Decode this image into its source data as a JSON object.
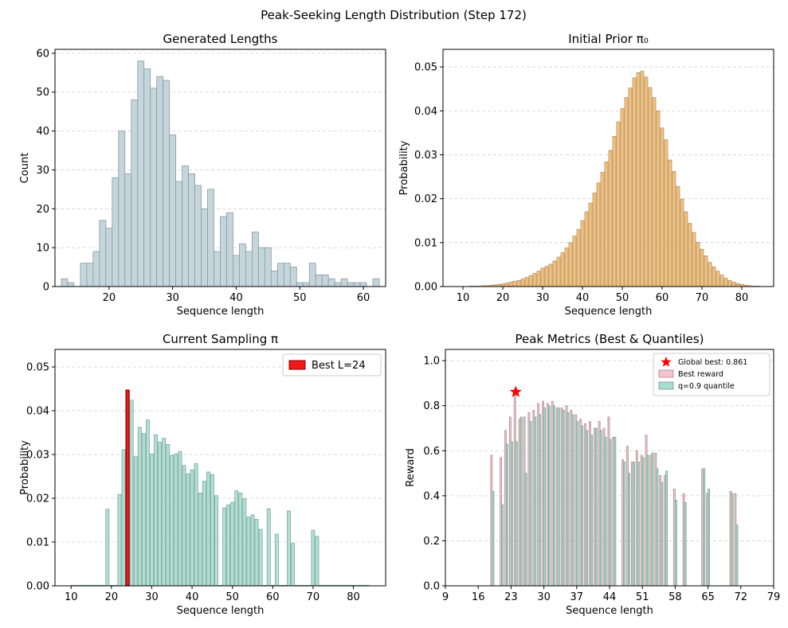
{
  "figure_title": "Peak-Seeking Length Distribution (Step 172)",
  "colors": {
    "hist": "#c5d5dc",
    "hist_edge": "#8a9aa2",
    "prior": "#f5c37f",
    "prior_edge": "#a8865a",
    "sampling": "#b3e0d5",
    "sampling_edge": "#7aa59a",
    "best": "#f01818",
    "best_edge": "#8a0000",
    "best_reward": "#f2c4cc",
    "best_reward_edge": "#a88890",
    "quantile": "#a9dccf",
    "quantile_edge": "#6f9a8f",
    "star": "#ff0000",
    "grid": "#d0d0d0"
  },
  "chart_data": [
    {
      "type": "bar",
      "title": "Generated Lengths",
      "xlabel": "Sequence length",
      "ylabel": "Count",
      "grid": true,
      "xlim": [
        11.5,
        63.5
      ],
      "ylim": [
        0,
        61
      ],
      "xticks": [
        20,
        30,
        40,
        50,
        60
      ],
      "yticks": [
        0,
        10,
        20,
        30,
        40,
        50,
        60
      ],
      "x": [
        13,
        14,
        16,
        17,
        18,
        19,
        20,
        21,
        22,
        23,
        24,
        25,
        26,
        27,
        28,
        29,
        30,
        31,
        32,
        33,
        34,
        35,
        36,
        37,
        38,
        39,
        40,
        41,
        42,
        43,
        44,
        45,
        46,
        47,
        48,
        49,
        50,
        51,
        52,
        53,
        54,
        55,
        56,
        57,
        58,
        59,
        60,
        62
      ],
      "values": [
        2,
        1,
        6,
        6,
        9,
        17,
        15,
        28,
        40,
        29,
        48,
        58,
        56,
        51,
        54,
        53,
        39,
        27,
        31,
        29,
        26,
        20,
        25,
        9,
        18,
        19,
        8,
        11,
        9,
        14,
        10,
        10,
        4,
        6,
        6,
        5,
        1,
        1,
        6,
        3,
        3,
        2,
        1,
        2,
        1,
        1,
        1,
        2
      ]
    },
    {
      "type": "bar",
      "title": "Initial Prior π₀",
      "xlabel": "Sequence length",
      "ylabel": "Probability",
      "grid": true,
      "xlim": [
        5,
        88
      ],
      "ylim": [
        0,
        0.054
      ],
      "xticks": [
        10,
        20,
        30,
        40,
        50,
        60,
        70,
        80
      ],
      "yticks": [
        0,
        0.01,
        0.02,
        0.03,
        0.04,
        0.05
      ],
      "x": [
        12,
        13,
        14,
        15,
        16,
        17,
        18,
        19,
        20,
        21,
        22,
        23,
        24,
        25,
        26,
        27,
        28,
        29,
        30,
        31,
        32,
        33,
        34,
        35,
        36,
        37,
        38,
        39,
        40,
        41,
        42,
        43,
        44,
        45,
        46,
        47,
        48,
        49,
        50,
        51,
        52,
        53,
        54,
        55,
        56,
        57,
        58,
        59,
        60,
        61,
        62,
        63,
        64,
        65,
        66,
        67,
        68,
        69,
        70,
        71,
        72,
        73,
        74,
        75,
        76,
        77,
        78,
        79,
        80,
        81,
        82,
        83,
        84
      ],
      "values": [
        0.0001,
        0.0001,
        0.0001,
        0.0002,
        0.0002,
        0.0003,
        0.0004,
        0.0005,
        0.0006,
        0.0008,
        0.001,
        0.0012,
        0.0014,
        0.0017,
        0.0021,
        0.0025,
        0.003,
        0.0035,
        0.0042,
        0.0046,
        0.0051,
        0.0058,
        0.0067,
        0.0077,
        0.0088,
        0.01,
        0.0115,
        0.013,
        0.015,
        0.017,
        0.019,
        0.0213,
        0.0236,
        0.026,
        0.0284,
        0.031,
        0.0342,
        0.0375,
        0.0405,
        0.043,
        0.0452,
        0.0475,
        0.0487,
        0.049,
        0.0477,
        0.0453,
        0.043,
        0.04,
        0.0361,
        0.0334,
        0.0288,
        0.0262,
        0.0228,
        0.0199,
        0.017,
        0.0144,
        0.0123,
        0.0101,
        0.0085,
        0.007,
        0.0055,
        0.0045,
        0.0035,
        0.0026,
        0.0019,
        0.0014,
        0.001,
        0.0007,
        0.0005,
        0.0003,
        0.0002,
        0.0001,
        0.0001
      ]
    },
    {
      "type": "bar",
      "title": "Current Sampling π",
      "xlabel": "Sequence length",
      "ylabel": "Probability",
      "grid": true,
      "xlim": [
        6,
        88
      ],
      "ylim": [
        0,
        0.054
      ],
      "xticks": [
        10,
        20,
        30,
        40,
        50,
        60,
        70,
        80
      ],
      "yticks": [
        0,
        0.01,
        0.02,
        0.03,
        0.04,
        0.05
      ],
      "legend": "Best L=24",
      "legend_position": "top-right",
      "best_x": 24,
      "x": [
        19,
        22,
        23,
        24,
        25,
        26,
        27,
        28,
        29,
        30,
        31,
        32,
        33,
        34,
        35,
        36,
        37,
        38,
        39,
        40,
        41,
        42,
        43,
        44,
        45,
        46,
        48,
        49,
        50,
        51,
        52,
        53,
        54,
        55,
        56,
        57,
        59,
        61,
        64,
        65,
        70,
        71
      ],
      "values": [
        0.0175,
        0.0209,
        0.0311,
        0.0447,
        0.0424,
        0.0295,
        0.0362,
        0.0348,
        0.0379,
        0.0301,
        0.0345,
        0.0328,
        0.0337,
        0.0323,
        0.0298,
        0.0301,
        0.0307,
        0.0275,
        0.0256,
        0.0265,
        0.0279,
        0.0212,
        0.0239,
        0.026,
        0.0254,
        0.0206,
        0.0178,
        0.0185,
        0.0191,
        0.0217,
        0.0212,
        0.0199,
        0.0157,
        0.0162,
        0.0152,
        0.0129,
        0.0176,
        0.0118,
        0.0171,
        0.0097,
        0.0127,
        0.0113
      ]
    },
    {
      "type": "bar",
      "title": "Peak Metrics (Best & Quantiles)",
      "xlabel": "Sequence length",
      "ylabel": "Reward",
      "grid": true,
      "xlim": [
        9,
        79
      ],
      "ylim": [
        0,
        1.05
      ],
      "xticks": [
        9,
        16,
        23,
        30,
        37,
        44,
        51,
        58,
        65,
        72,
        79
      ],
      "yticks": [
        0,
        0.2,
        0.4,
        0.6,
        0.8,
        1.0
      ],
      "legend_position": "top-right",
      "global_best": {
        "label": "Global best: 0.861",
        "x": 24,
        "y": 0.861
      },
      "series": [
        {
          "name": "Best reward",
          "x": [
            19,
            21,
            22,
            23,
            24,
            25,
            26,
            27,
            28,
            29,
            30,
            31,
            32,
            33,
            34,
            35,
            36,
            37,
            38,
            39,
            40,
            41,
            42,
            43,
            44,
            45,
            47,
            48,
            49,
            50,
            51,
            52,
            53,
            54,
            55,
            56,
            58,
            60,
            64,
            65,
            70,
            71
          ],
          "values": [
            0.58,
            0.57,
            0.69,
            0.75,
            0.86,
            0.74,
            0.75,
            0.77,
            0.78,
            0.81,
            0.82,
            0.81,
            0.82,
            0.79,
            0.79,
            0.8,
            0.78,
            0.76,
            0.74,
            0.72,
            0.73,
            0.7,
            0.73,
            0.7,
            0.75,
            0.66,
            0.56,
            0.62,
            0.55,
            0.6,
            0.58,
            0.67,
            0.58,
            0.59,
            0.49,
            0.49,
            0.43,
            0.41,
            0.52,
            0.41,
            0.42,
            0.41
          ]
        },
        {
          "name": "q=0.9 quantile",
          "x": [
            19,
            21,
            22,
            23,
            24,
            25,
            26,
            27,
            28,
            29,
            30,
            31,
            32,
            33,
            34,
            35,
            36,
            37,
            38,
            39,
            40,
            41,
            42,
            43,
            44,
            45,
            47,
            48,
            49,
            50,
            51,
            52,
            53,
            54,
            55,
            56,
            58,
            60,
            64,
            65,
            70,
            71
          ],
          "values": [
            0.42,
            0.36,
            0.63,
            0.64,
            0.64,
            0.75,
            0.5,
            0.73,
            0.75,
            0.76,
            0.79,
            0.8,
            0.8,
            0.79,
            0.78,
            0.77,
            0.76,
            0.73,
            0.71,
            0.69,
            0.67,
            0.7,
            0.69,
            0.66,
            0.65,
            0.66,
            0.55,
            0.5,
            0.55,
            0.55,
            0.57,
            0.58,
            0.59,
            0.52,
            0.46,
            0.51,
            0.38,
            0.37,
            0.52,
            0.43,
            0.41,
            0.27
          ]
        }
      ]
    }
  ]
}
